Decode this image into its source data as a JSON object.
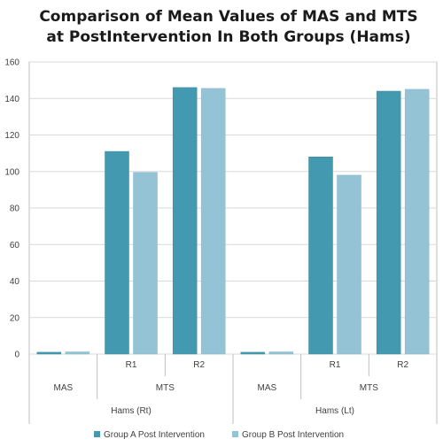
{
  "chart_data": {
    "type": "bar",
    "title_lines": [
      "Comparison of Mean Values of MAS and MTS",
      "at PostIntervention In Both Groups (Hams)"
    ],
    "categories": [
      {
        "level1": "",
        "level2": "MAS",
        "level3": "Hams (Rt)"
      },
      {
        "level1": "R1",
        "level2": "MTS",
        "level3": "Hams (Rt)"
      },
      {
        "level1": "R2",
        "level2": "MTS",
        "level3": "Hams (Rt)"
      },
      {
        "level1": "",
        "level2": "MAS",
        "level3": "Hams (Lt)"
      },
      {
        "level1": "R1",
        "level2": "MTS",
        "level3": "Hams (Lt)"
      },
      {
        "level1": "R2",
        "level2": "MTS",
        "level3": "Hams (Lt)"
      }
    ],
    "group_labels": {
      "level1": [
        "R1",
        "R2",
        "R1",
        "R2"
      ],
      "level2": [
        "MAS",
        "MTS",
        "MAS",
        "MTS"
      ],
      "level3": [
        "Hams (Rt)",
        "Hams (Lt)"
      ]
    },
    "series": [
      {
        "name": "Group A Post Intervention",
        "color": "#4299B0",
        "values": [
          1,
          111,
          146,
          1,
          108,
          144
        ]
      },
      {
        "name": "Group B Post Intervention",
        "color": "#93C3D5",
        "values": [
          1.2,
          99.5,
          145.5,
          1.2,
          98,
          145
        ]
      }
    ],
    "ylim": [
      0,
      160
    ],
    "yticks": [
      0,
      20,
      40,
      60,
      80,
      100,
      120,
      140,
      160
    ],
    "grid": true,
    "legend_position": "bottom"
  }
}
